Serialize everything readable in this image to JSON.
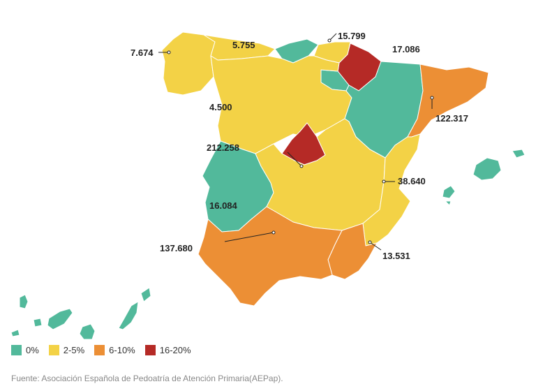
{
  "colors": {
    "green": "#52b99b",
    "yellow": "#f3d246",
    "orange": "#ec8f35",
    "red": "#b52a26"
  },
  "legend": [
    {
      "label": "0%",
      "color": "#52b99b"
    },
    {
      "label": "2-5%",
      "color": "#f3d246"
    },
    {
      "label": "6-10%",
      "color": "#ec8f35"
    },
    {
      "label": "16-20%",
      "color": "#b52a26"
    }
  ],
  "labels": {
    "galicia": "7.674",
    "asturias": "5.755",
    "basque": "15.799",
    "navarra": "17.086",
    "castilla_leon": "4.500",
    "catalonia": "122.317",
    "madrid": "212.258",
    "valencia": "38.640",
    "extremadura": "16.084",
    "andalusia": "137.680",
    "murcia": "13.531"
  },
  "source": "Fuente: Asociación Española de Pedoatría de Atención Primaria(AEPap)."
}
